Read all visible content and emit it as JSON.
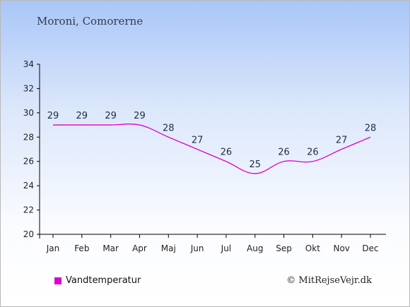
{
  "title": "Moroni, Comorerne",
  "legend": {
    "label": "Vandtemperatur",
    "color": "#dd00cc"
  },
  "credit": "© MitRejseVejr.dk",
  "chart_data": {
    "type": "line",
    "categories": [
      "Jan",
      "Feb",
      "Mar",
      "Apr",
      "Maj",
      "Jun",
      "Jul",
      "Aug",
      "Sep",
      "Okt",
      "Nov",
      "Dec"
    ],
    "series": [
      {
        "name": "Vandtemperatur",
        "values": [
          29,
          29,
          29,
          29,
          28,
          27,
          26,
          25,
          26,
          26,
          27,
          28
        ],
        "color": "#dd00cc"
      }
    ],
    "ylim": [
      20,
      34
    ],
    "yticks": [
      20,
      22,
      24,
      26,
      28,
      30,
      32,
      34
    ],
    "grid": false,
    "legend_position": "bottom-left"
  }
}
